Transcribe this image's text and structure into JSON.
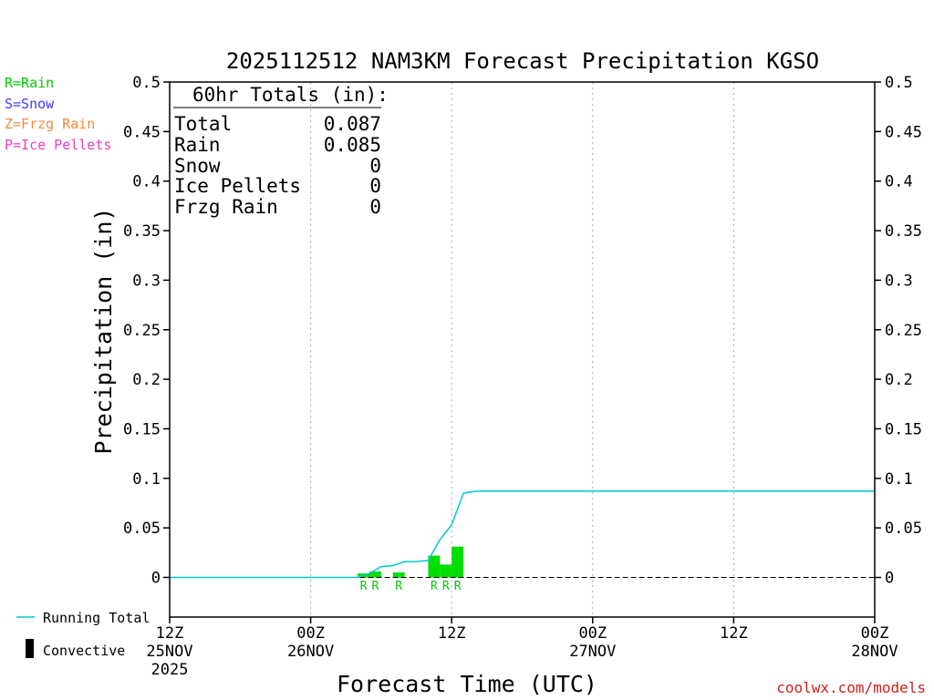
{
  "chart_data": {
    "type": "bar",
    "title": "2025112512 NAM3KM Forecast Precipitation KGSO",
    "xlabel": "Forecast Time (UTC)",
    "ylabel": "Precipitation (in)",
    "xunit": "forecast hour",
    "xlim": [
      0,
      60
    ],
    "ylim": [
      -0.04,
      0.5
    ],
    "y_ticks": [
      0,
      0.05,
      0.1,
      0.15,
      0.2,
      0.25,
      0.3,
      0.35,
      0.4,
      0.45,
      0.5
    ],
    "y_tick_labels": [
      "0",
      "0.05",
      "0.1",
      "0.15",
      "0.2",
      "0.25",
      "0.3",
      "0.35",
      "0.4",
      "0.45",
      "0.5"
    ],
    "x_ticks": [
      {
        "hour": 0,
        "lines": [
          "12Z",
          "25NOV",
          "2025"
        ]
      },
      {
        "hour": 12,
        "lines": [
          "00Z",
          "26NOV"
        ]
      },
      {
        "hour": 24,
        "lines": [
          "12Z"
        ]
      },
      {
        "hour": 36,
        "lines": [
          "00Z",
          "27NOV"
        ]
      },
      {
        "hour": 48,
        "lines": [
          "12Z"
        ]
      },
      {
        "hour": 60,
        "lines": [
          "00Z",
          "28NOV"
        ]
      }
    ],
    "grid": "vertical dotted",
    "bars": [
      {
        "hour": 17,
        "value": 0.004,
        "ptype": "R"
      },
      {
        "hour": 18,
        "value": 0.006,
        "ptype": "R"
      },
      {
        "hour": 20,
        "value": 0.005,
        "ptype": "R"
      },
      {
        "hour": 23,
        "value": 0.022,
        "ptype": "R"
      },
      {
        "hour": 24,
        "value": 0.013,
        "ptype": "R"
      },
      {
        "hour": 25,
        "value": 0.031,
        "ptype": "R"
      }
    ],
    "running_total": {
      "name": "Running Total",
      "color": "#00c8d2",
      "x": [
        0,
        16,
        17,
        18,
        19,
        20,
        21,
        22,
        23,
        24,
        25,
        26,
        60
      ],
      "y": [
        0,
        0,
        0.004,
        0.011,
        0.012,
        0.016,
        0.016,
        0.017,
        0.038,
        0.053,
        0.085,
        0.087,
        0.087
      ]
    },
    "ptype_legend": [
      {
        "label": "R=Rain",
        "color": "#00cc00"
      },
      {
        "label": "S=Snow",
        "color": "#3c3cff"
      },
      {
        "label": "Z=Frzg Rain",
        "color": "#f08a3c"
      },
      {
        "label": "P=Ice Pellets",
        "color": "#f03cc8"
      }
    ],
    "series_legend": [
      {
        "label": "Running Total",
        "color": "#00c8d2"
      },
      {
        "label": "Convective",
        "color": "#000000"
      }
    ],
    "totals": {
      "heading": "60hr Totals (in):",
      "rows": [
        {
          "label": "Total",
          "value": "0.087"
        },
        {
          "label": "Rain",
          "value": "0.085"
        },
        {
          "label": "Snow",
          "value": "0"
        },
        {
          "label": "Ice Pellets",
          "value": "0"
        },
        {
          "label": "Frzg Rain",
          "value": "0"
        }
      ]
    },
    "bar_color": "#00dd00"
  },
  "credit": "coolwx.com/models"
}
